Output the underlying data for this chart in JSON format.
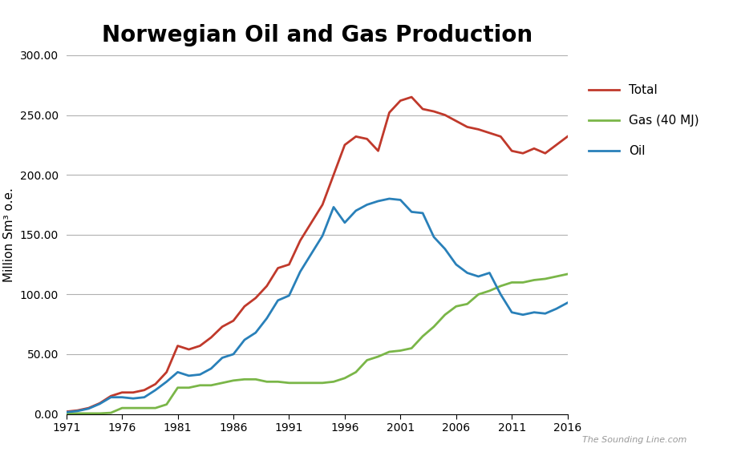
{
  "title": "Norwegian Oil and Gas Production",
  "ylabel": "Million Sm³ o.e.",
  "background_color": "#ffffff",
  "grid_color": "#b0b0b0",
  "title_fontsize": 20,
  "label_fontsize": 11,
  "tick_fontsize": 10,
  "ylim": [
    0,
    300
  ],
  "yticks": [
    0,
    50,
    100,
    150,
    200,
    250,
    300
  ],
  "xticks": [
    1971,
    1976,
    1981,
    1986,
    1991,
    1996,
    2001,
    2006,
    2011,
    2016
  ],
  "watermark": "The Sounding Line.com",
  "years": [
    1971,
    1972,
    1973,
    1974,
    1975,
    1976,
    1977,
    1978,
    1979,
    1980,
    1981,
    1982,
    1983,
    1984,
    1985,
    1986,
    1987,
    1988,
    1989,
    1990,
    1991,
    1992,
    1993,
    1994,
    1995,
    1996,
    1997,
    1998,
    1999,
    2000,
    2001,
    2002,
    2003,
    2004,
    2005,
    2006,
    2007,
    2008,
    2009,
    2010,
    2011,
    2012,
    2013,
    2014,
    2015,
    2016
  ],
  "total": [
    2.0,
    3.0,
    5.0,
    9.0,
    15.0,
    18.0,
    18.0,
    20.0,
    25.0,
    35.0,
    57.0,
    54.0,
    57.0,
    64.0,
    73.0,
    78.0,
    90.0,
    97.0,
    107.0,
    122.0,
    125.0,
    145.0,
    160.0,
    175.0,
    200.0,
    225.0,
    232.0,
    230.0,
    220.0,
    252.0,
    262.0,
    265.0,
    255.0,
    253.0,
    250.0,
    245.0,
    240.0,
    238.0,
    235.0,
    232.0,
    220.0,
    218.0,
    222.0,
    218.0,
    225.0,
    232.0
  ],
  "gas": [
    0.5,
    0.5,
    0.5,
    0.5,
    1.0,
    5.0,
    5.0,
    5.0,
    5.0,
    8.0,
    22.0,
    22.0,
    24.0,
    24.0,
    26.0,
    28.0,
    29.0,
    29.0,
    27.0,
    27.0,
    26.0,
    26.0,
    26.0,
    26.0,
    27.0,
    30.0,
    35.0,
    45.0,
    48.0,
    52.0,
    53.0,
    55.0,
    65.0,
    73.0,
    83.0,
    90.0,
    92.0,
    100.0,
    103.0,
    107.0,
    110.0,
    110.0,
    112.0,
    113.0,
    115.0,
    117.0
  ],
  "oil": [
    1.5,
    2.5,
    4.5,
    8.5,
    14.0,
    14.0,
    13.0,
    14.0,
    20.0,
    27.0,
    35.0,
    32.0,
    33.0,
    38.0,
    47.0,
    50.0,
    62.0,
    68.0,
    80.0,
    95.0,
    99.0,
    119.0,
    134.0,
    149.0,
    173.0,
    160.0,
    170.0,
    175.0,
    178.0,
    180.0,
    179.0,
    169.0,
    168.0,
    148.0,
    138.0,
    125.0,
    118.0,
    115.0,
    118.0,
    100.0,
    85.0,
    83.0,
    85.0,
    84.0,
    88.0,
    93.0
  ],
  "total_color": "#c0392b",
  "gas_color": "#7ab648",
  "oil_color": "#2980b9",
  "line_width": 2.0,
  "legend_labels": [
    "Total",
    "Gas (40 MJ)",
    "Oil"
  ]
}
